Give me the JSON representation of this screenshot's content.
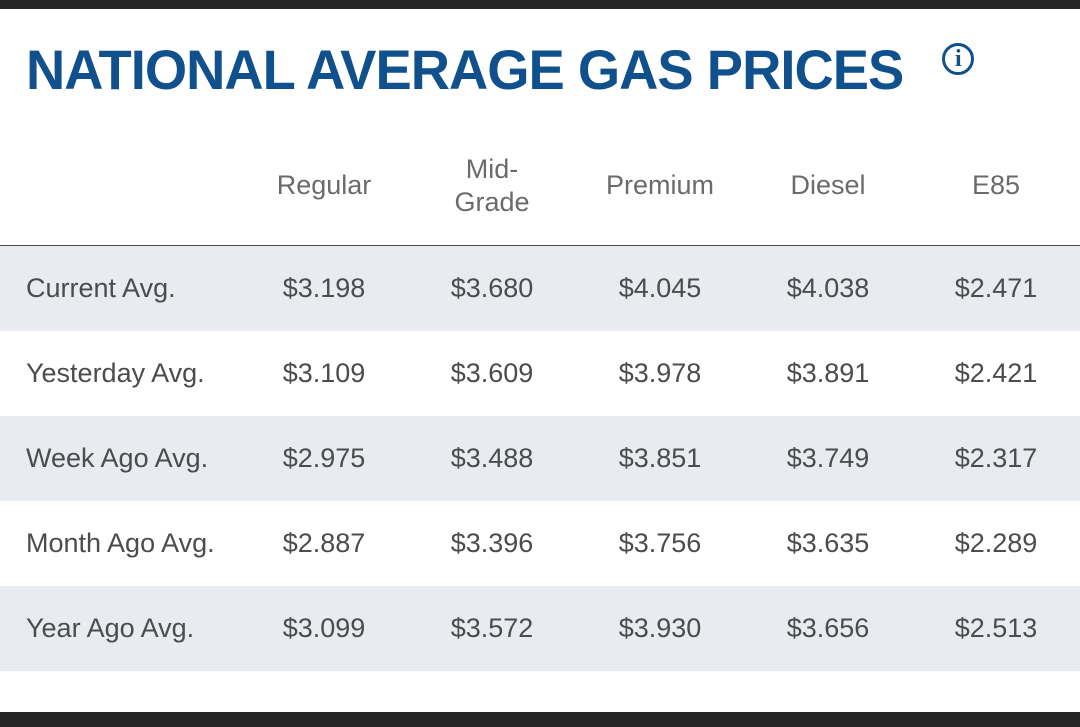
{
  "page": {
    "title": "NATIONAL AVERAGE GAS PRICES",
    "info_icon_glyph": "i"
  },
  "colors": {
    "title_blue": "#10508d",
    "header_gray": "#6b6b6b",
    "cell_gray": "#4c4c4c",
    "alt_row_bg": "#e8ebf0",
    "frame_bar": "#262626"
  },
  "chart_data": {
    "type": "table",
    "title": "NATIONAL AVERAGE GAS PRICES",
    "columns": [
      "Regular",
      "Mid-Grade",
      "Premium",
      "Diesel",
      "E85"
    ],
    "rows": [
      {
        "label": "Current Avg.",
        "values": [
          "$3.198",
          "$3.680",
          "$4.045",
          "$4.038",
          "$2.471"
        ]
      },
      {
        "label": "Yesterday Avg.",
        "values": [
          "$3.109",
          "$3.609",
          "$3.978",
          "$3.891",
          "$2.421"
        ]
      },
      {
        "label": "Week Ago Avg.",
        "values": [
          "$2.975",
          "$3.488",
          "$3.851",
          "$3.749",
          "$2.317"
        ]
      },
      {
        "label": "Month Ago Avg.",
        "values": [
          "$2.887",
          "$3.396",
          "$3.756",
          "$3.635",
          "$2.289"
        ]
      },
      {
        "label": "Year Ago Avg.",
        "values": [
          "$3.099",
          "$3.572",
          "$3.930",
          "$3.656",
          "$2.513"
        ]
      }
    ]
  }
}
